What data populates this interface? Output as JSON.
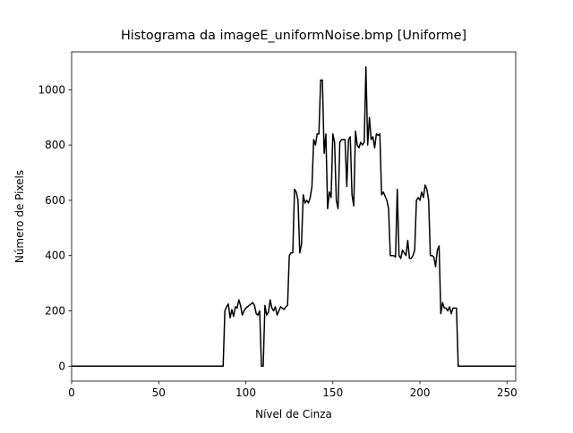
{
  "chart_data": {
    "type": "line",
    "title": "Histograma da imageE_uniformNoise.bmp [Uniforme]",
    "x_label": "Nível de Cinza",
    "y_label": "Número de Pixels",
    "xlim": [
      0,
      255
    ],
    "ylim": [
      -54,
      1137
    ],
    "xticks": [
      0,
      50,
      100,
      150,
      200,
      250
    ],
    "yticks": [
      0,
      200,
      400,
      600,
      800,
      1000
    ],
    "x": [
      0,
      1,
      2,
      3,
      4,
      5,
      6,
      7,
      8,
      9,
      10,
      11,
      12,
      13,
      14,
      15,
      16,
      17,
      18,
      19,
      20,
      21,
      22,
      23,
      24,
      25,
      26,
      27,
      28,
      29,
      30,
      31,
      32,
      33,
      34,
      35,
      36,
      37,
      38,
      39,
      40,
      41,
      42,
      43,
      44,
      45,
      46,
      47,
      48,
      49,
      50,
      51,
      52,
      53,
      54,
      55,
      56,
      57,
      58,
      59,
      60,
      61,
      62,
      63,
      64,
      65,
      66,
      67,
      68,
      69,
      70,
      71,
      72,
      73,
      74,
      75,
      76,
      77,
      78,
      79,
      80,
      81,
      82,
      83,
      84,
      85,
      86,
      87,
      88,
      89,
      90,
      91,
      92,
      93,
      94,
      95,
      96,
      97,
      98,
      99,
      100,
      101,
      102,
      103,
      104,
      105,
      106,
      107,
      108,
      109,
      110,
      111,
      112,
      113,
      114,
      115,
      116,
      117,
      118,
      119,
      120,
      121,
      122,
      123,
      124,
      125,
      126,
      127,
      128,
      129,
      130,
      131,
      132,
      133,
      134,
      135,
      136,
      137,
      138,
      139,
      140,
      141,
      142,
      143,
      144,
      145,
      146,
      147,
      148,
      149,
      150,
      151,
      152,
      153,
      154,
      155,
      156,
      157,
      158,
      159,
      160,
      161,
      162,
      163,
      164,
      165,
      166,
      167,
      168,
      169,
      170,
      171,
      172,
      173,
      174,
      175,
      176,
      177,
      178,
      179,
      180,
      181,
      182,
      183,
      184,
      185,
      186,
      187,
      188,
      189,
      190,
      191,
      192,
      193,
      194,
      195,
      196,
      197,
      198,
      199,
      200,
      201,
      202,
      203,
      204,
      205,
      206,
      207,
      208,
      209,
      210,
      211,
      212,
      213,
      214,
      215,
      216,
      217,
      218,
      219,
      220,
      221,
      222,
      223,
      224,
      225,
      226,
      227,
      228,
      229,
      230,
      231,
      232,
      233,
      234,
      235,
      236,
      237,
      238,
      239,
      240,
      241,
      242,
      243,
      244,
      245,
      246,
      247,
      248,
      249,
      250,
      251,
      252,
      253,
      254,
      255
    ],
    "series": [
      {
        "color": "#000000",
        "values": [
          0,
          0,
          0,
          0,
          0,
          0,
          0,
          0,
          0,
          0,
          0,
          0,
          0,
          0,
          0,
          0,
          0,
          0,
          0,
          0,
          0,
          0,
          0,
          0,
          0,
          0,
          0,
          0,
          0,
          0,
          0,
          0,
          0,
          0,
          0,
          0,
          0,
          0,
          0,
          0,
          0,
          0,
          0,
          0,
          0,
          0,
          0,
          0,
          0,
          0,
          0,
          0,
          0,
          0,
          0,
          0,
          0,
          0,
          0,
          0,
          0,
          0,
          0,
          0,
          0,
          0,
          0,
          0,
          0,
          0,
          0,
          0,
          0,
          0,
          0,
          0,
          0,
          0,
          0,
          0,
          0,
          0,
          0,
          0,
          0,
          0,
          0,
          0,
          200,
          215,
          225,
          175,
          205,
          180,
          215,
          210,
          240,
          220,
          185,
          200,
          210,
          215,
          220,
          225,
          230,
          220,
          190,
          185,
          200,
          0,
          0,
          220,
          185,
          195,
          240,
          210,
          200,
          215,
          185,
          200,
          215,
          210,
          205,
          215,
          220,
          400,
          410,
          410,
          640,
          630,
          600,
          410,
          440,
          620,
          590,
          600,
          590,
          610,
          650,
          820,
          800,
          840,
          840,
          1035,
          1035,
          770,
          840,
          570,
          630,
          610,
          840,
          810,
          600,
          570,
          810,
          820,
          820,
          820,
          650,
          820,
          830,
          620,
          580,
          850,
          800,
          790,
          810,
          800,
          810,
          1083,
          800,
          900,
          820,
          830,
          790,
          840,
          835,
          840,
          620,
          630,
          615,
          600,
          570,
          400,
          400,
          400,
          395,
          640,
          400,
          390,
          420,
          410,
          400,
          455,
          390,
          390,
          400,
          420,
          600,
          610,
          600,
          630,
          610,
          655,
          640,
          600,
          400,
          400,
          395,
          360,
          420,
          435,
          190,
          230,
          210,
          210,
          200,
          215,
          190,
          210,
          210,
          210,
          0,
          0,
          0,
          0,
          0,
          0,
          0,
          0,
          0,
          0,
          0,
          0,
          0,
          0,
          0,
          0,
          0,
          0,
          0,
          0,
          0,
          0,
          0,
          0,
          0,
          0,
          0,
          0,
          0,
          0,
          0,
          0,
          0,
          0
        ]
      }
    ]
  }
}
